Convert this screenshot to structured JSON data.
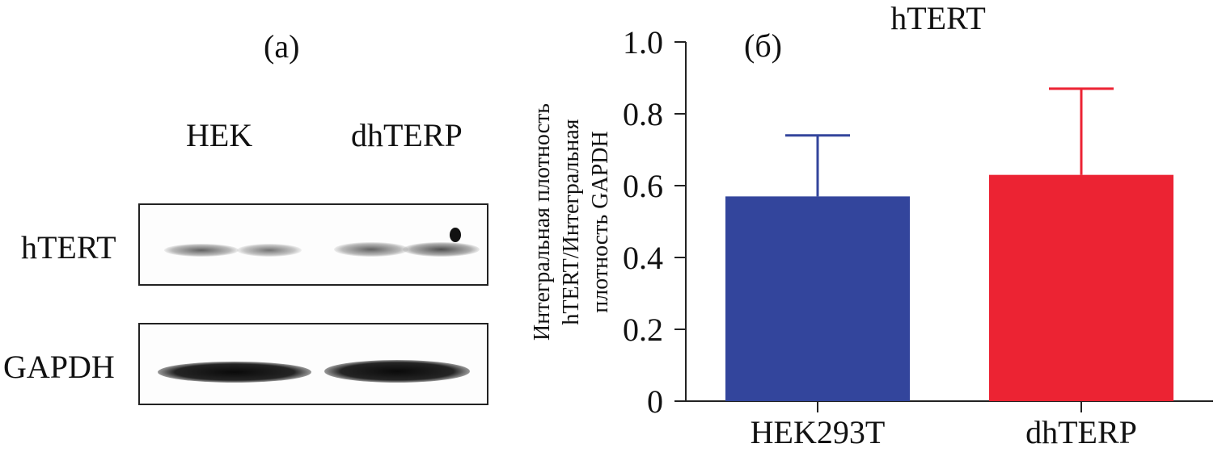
{
  "panel_a": {
    "label": "(a)",
    "lanes": [
      "HEK",
      "dhTERP"
    ],
    "rows": [
      "hTERT",
      "GAPDH"
    ]
  },
  "colors": {
    "HEK293T": "#33459c",
    "dhTERP": "#ec2333",
    "axis": "#222222"
  },
  "chart_data": {
    "type": "bar",
    "panel_label": "(б)",
    "title": "hTERT",
    "ylabel_lines": [
      "Интегральная плотность",
      "hTERT/Интегральная",
      "плотность GAPDH"
    ],
    "categories": [
      "HEK293T",
      "dhTERP"
    ],
    "values": [
      0.57,
      0.63
    ],
    "errors": [
      0.17,
      0.24
    ],
    "ylim": [
      0,
      1.0
    ],
    "yticks": [
      "0",
      "0.2",
      "0.4",
      "0.6",
      "0.8",
      "1.0"
    ],
    "grid": false,
    "legend": "none"
  }
}
